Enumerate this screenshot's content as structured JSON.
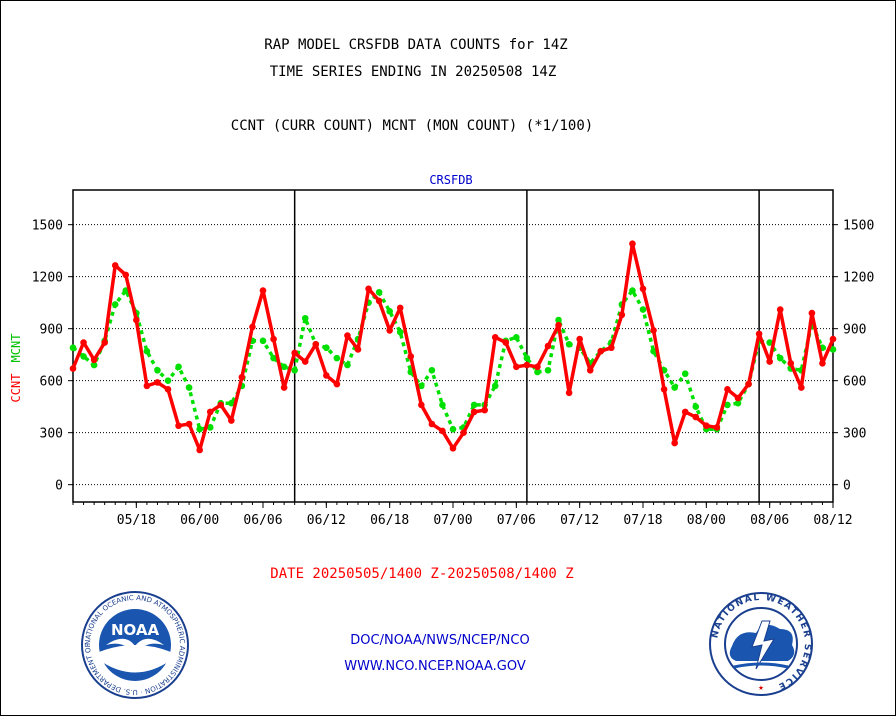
{
  "header": {
    "title_line1": "RAP MODEL CRSFDB DATA COUNTS for 14Z",
    "title_line2": "TIME SERIES ENDING IN 20250508 14Z",
    "subtitle": "CCNT (CURR COUNT) MCNT (MON COUNT) (*1/100)"
  },
  "footer": {
    "date_range": "DATE 20250505/1400 Z-20250508/1400 Z",
    "org_line1": "DOC/NOAA/NWS/NCEP/NCO",
    "org_line2": "WWW.NCO.NCEP.NOAA.GOV"
  },
  "logos": {
    "left_inner": "NOAA",
    "left_ring": "NATIONAL OCEANIC AND ATMOSPHERIC ADMINISTRATION · U.S. DEPARTMENT OF COMMERCE",
    "right_ring": "NATIONAL WEATHER SERVICE"
  },
  "colors": {
    "ccnt": "#ff0000",
    "mcnt": "#00e000",
    "axis_title": "#0000cc",
    "footer_date": "#ff0000",
    "footer_org": "#0000cc"
  },
  "chart_data": {
    "type": "line",
    "title": "CRSFDB",
    "ylabel_left": [
      "CCNT",
      "MCNT"
    ],
    "ylim": [
      -100,
      1700
    ],
    "yticks": [
      0,
      300,
      600,
      900,
      1200,
      1500
    ],
    "xticks": [
      "05/18",
      "06/00",
      "06/06",
      "06/12",
      "06/18",
      "07/00",
      "07/06",
      "07/12",
      "07/18",
      "08/00",
      "08/06",
      "08/12"
    ],
    "grid": true,
    "day_separators_after_index": [
      21,
      43,
      65
    ],
    "series": [
      {
        "name": "CCNT",
        "color": "#ff0000",
        "values": [
          670,
          820,
          720,
          820,
          1265,
          1210,
          950,
          570,
          590,
          550,
          340,
          350,
          200,
          420,
          460,
          370,
          620,
          910,
          1120,
          840,
          560,
          760,
          710,
          810,
          630,
          580,
          860,
          780,
          1130,
          1060,
          890,
          1020,
          740,
          460,
          350,
          310,
          210,
          300,
          420,
          430,
          850,
          820,
          680,
          690,
          680,
          800,
          920,
          530,
          840,
          660,
          770,
          790,
          980,
          1390,
          1130,
          890,
          550,
          240,
          420,
          390,
          340,
          330,
          550,
          500,
          580,
          870,
          710,
          1010,
          700,
          560,
          990,
          700,
          840
        ],
        "mlabel": null
      },
      {
        "name": "MCNT",
        "color": "#00e000",
        "values": [
          790,
          740,
          690,
          830,
          1040,
          1120,
          990,
          770,
          660,
          600,
          680,
          560,
          320,
          330,
          470,
          470,
          570,
          830,
          830,
          730,
          680,
          660,
          960,
          810,
          790,
          730,
          690,
          840,
          1050,
          1110,
          1000,
          880,
          650,
          570,
          660,
          460,
          320,
          330,
          460,
          460,
          570,
          830,
          850,
          730,
          650,
          660,
          950,
          810,
          790,
          700,
          770,
          820,
          1040,
          1120,
          1010,
          770,
          660,
          560,
          640,
          450,
          320,
          320,
          460,
          470,
          580,
          830,
          820,
          730,
          670,
          660,
          930,
          790,
          780
        ]
      }
    ]
  }
}
